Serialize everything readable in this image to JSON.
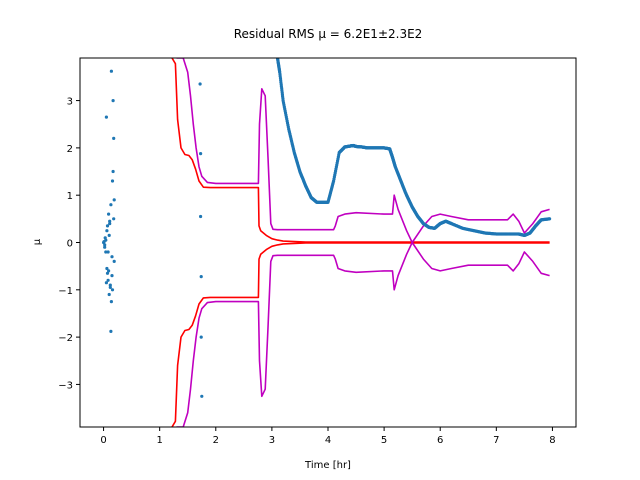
{
  "chart_data": {
    "type": "line",
    "title": "Residual RMS μ = 6.2E1±2.3E2",
    "xlabel": "Time [hr]",
    "ylabel": "μ",
    "xlim": [
      -0.42,
      8.42
    ],
    "ylim": [
      -3.9,
      3.9
    ],
    "xticks": [
      "0",
      "1",
      "2",
      "3",
      "4",
      "5",
      "6",
      "7",
      "8"
    ],
    "yticks": [
      "−3",
      "−2",
      "−1",
      "0",
      "1",
      "2",
      "3"
    ],
    "grid": false,
    "series": [
      {
        "color": "#ff0000",
        "style": "line",
        "x": [
          1.22,
          1.28,
          1.32,
          1.38,
          1.45,
          1.52,
          1.58,
          1.64,
          1.7,
          1.78,
          1.9,
          2.1,
          2.4,
          2.76,
          2.77,
          2.8,
          2.9,
          3.0,
          3.1,
          3.2,
          3.4,
          3.6,
          3.8,
          4.0,
          4.5,
          5.0,
          5.5,
          6.0,
          6.5,
          7.0,
          7.5,
          7.95
        ],
        "values": [
          3.9,
          3.78,
          2.6,
          2.0,
          1.86,
          1.84,
          1.75,
          1.55,
          1.3,
          1.17,
          1.16,
          1.16,
          1.16,
          1.16,
          0.35,
          0.25,
          0.15,
          0.08,
          0.05,
          0.03,
          0.02,
          0.01,
          0.01,
          0.01,
          0.01,
          0.01,
          0.01,
          0.01,
          0.01,
          0.01,
          0.01,
          0.01
        ]
      },
      {
        "color": "#ff0000",
        "style": "line",
        "x": [
          1.22,
          1.28,
          1.32,
          1.38,
          1.45,
          1.52,
          1.58,
          1.64,
          1.7,
          1.78,
          1.9,
          2.1,
          2.4,
          2.76,
          2.77,
          2.8,
          2.9,
          3.0,
          3.1,
          3.2,
          3.4,
          3.6,
          3.8,
          4.0,
          4.5,
          5.0,
          5.5,
          6.0,
          6.5,
          7.0,
          7.5,
          7.95
        ],
        "values": [
          -3.9,
          -3.78,
          -2.6,
          -2.0,
          -1.86,
          -1.84,
          -1.75,
          -1.55,
          -1.3,
          -1.17,
          -1.16,
          -1.16,
          -1.16,
          -1.16,
          -0.35,
          -0.25,
          -0.15,
          -0.08,
          -0.05,
          -0.03,
          -0.02,
          -0.01,
          -0.01,
          -0.01,
          -0.01,
          -0.01,
          -0.01,
          -0.01,
          -0.01,
          -0.01,
          -0.01,
          -0.01
        ]
      },
      {
        "color": "#c000c0",
        "style": "line",
        "x": [
          1.3,
          1.35,
          1.42,
          1.5,
          1.55,
          1.6,
          1.65,
          1.7,
          1.75,
          1.85,
          2.0,
          2.5,
          2.76,
          2.78,
          2.82,
          2.88,
          2.93,
          2.98,
          3.02,
          3.1,
          3.4,
          3.8,
          4.1,
          4.13,
          4.18,
          4.3,
          4.5,
          5.0,
          5.15,
          5.18,
          5.25,
          5.4,
          5.5,
          5.7,
          5.85,
          6.0,
          6.2,
          6.5,
          6.9,
          7.2,
          7.3,
          7.4,
          7.5,
          7.65,
          7.8,
          7.95
        ],
        "values": [
          3.9,
          3.9,
          3.9,
          3.6,
          3.1,
          2.5,
          2.0,
          1.6,
          1.4,
          1.27,
          1.25,
          1.25,
          1.25,
          2.5,
          3.25,
          3.1,
          1.8,
          0.4,
          0.28,
          0.27,
          0.27,
          0.27,
          0.27,
          0.35,
          0.55,
          0.6,
          0.63,
          0.6,
          0.6,
          1.0,
          0.7,
          0.25,
          0.0,
          0.35,
          0.55,
          0.6,
          0.55,
          0.48,
          0.48,
          0.48,
          0.6,
          0.45,
          0.2,
          0.4,
          0.65,
          0.7
        ]
      },
      {
        "color": "#c000c0",
        "style": "line",
        "x": [
          1.3,
          1.35,
          1.42,
          1.5,
          1.55,
          1.6,
          1.65,
          1.7,
          1.75,
          1.85,
          2.0,
          2.5,
          2.76,
          2.78,
          2.82,
          2.88,
          2.93,
          2.98,
          3.02,
          3.1,
          3.4,
          3.8,
          4.1,
          4.13,
          4.18,
          4.3,
          4.5,
          5.0,
          5.15,
          5.18,
          5.25,
          5.4,
          5.5,
          5.7,
          5.85,
          6.0,
          6.2,
          6.5,
          6.9,
          7.2,
          7.3,
          7.4,
          7.5,
          7.65,
          7.8,
          7.95
        ],
        "values": [
          -3.9,
          -3.9,
          -3.9,
          -3.6,
          -3.1,
          -2.5,
          -2.0,
          -1.6,
          -1.4,
          -1.27,
          -1.25,
          -1.25,
          -1.25,
          -2.5,
          -3.25,
          -3.1,
          -1.8,
          -0.4,
          -0.28,
          -0.27,
          -0.27,
          -0.27,
          -0.27,
          -0.35,
          -0.55,
          -0.6,
          -0.63,
          -0.6,
          -0.6,
          -1.0,
          -0.7,
          -0.25,
          0.0,
          -0.35,
          -0.55,
          -0.6,
          -0.55,
          -0.48,
          -0.48,
          -0.48,
          -0.6,
          -0.45,
          -0.2,
          -0.4,
          -0.65,
          -0.7
        ]
      },
      {
        "color": "#1f77b4",
        "style": "dense-dots",
        "x": [
          3.1,
          3.14,
          3.2,
          3.3,
          3.4,
          3.5,
          3.6,
          3.7,
          3.8,
          3.9,
          4.0,
          4.1,
          4.2,
          4.3,
          4.4,
          4.45,
          4.5,
          4.6,
          4.7,
          4.8,
          4.9,
          5.0,
          5.1,
          5.15,
          5.2,
          5.3,
          5.4,
          5.5,
          5.6,
          5.7,
          5.8,
          5.9,
          6.0,
          6.1,
          6.2,
          6.4,
          6.6,
          6.8,
          7.0,
          7.2,
          7.4,
          7.5,
          7.6,
          7.7,
          7.8,
          7.95
        ],
        "values": [
          3.9,
          3.6,
          3.0,
          2.4,
          1.9,
          1.5,
          1.2,
          0.95,
          0.85,
          0.85,
          0.85,
          1.3,
          1.9,
          2.02,
          2.04,
          2.05,
          2.03,
          2.02,
          2.0,
          2.0,
          2.0,
          2.0,
          1.98,
          1.8,
          1.6,
          1.3,
          1.0,
          0.75,
          0.55,
          0.4,
          0.32,
          0.3,
          0.4,
          0.45,
          0.4,
          0.3,
          0.25,
          0.2,
          0.18,
          0.18,
          0.18,
          0.15,
          0.2,
          0.35,
          0.48,
          0.5
        ]
      },
      {
        "color": "#1f77b4",
        "style": "scatter",
        "x": [
          0.0,
          0.01,
          0.02,
          0.03,
          0.04,
          0.05,
          0.06,
          0.07,
          0.08,
          0.09,
          0.1,
          0.11,
          0.12,
          0.13,
          0.14,
          0.15,
          0.16,
          0.17,
          0.18,
          0.19,
          0.02,
          0.06,
          0.09,
          0.11,
          0.13,
          0.15,
          0.17,
          0.19,
          0.04,
          0.08,
          0.12,
          0.16,
          0.18,
          0.05,
          0.1,
          0.14,
          0.07,
          1.72,
          1.73,
          1.73,
          1.74,
          1.74,
          1.75
        ],
        "values": [
          0.0,
          0.02,
          -0.05,
          0.1,
          -0.2,
          2.65,
          -0.55,
          0.35,
          -0.8,
          0.6,
          -1.1,
          0.45,
          -0.95,
          -1.88,
          3.62,
          -0.7,
          1.3,
          3.0,
          2.2,
          0.9,
          -0.1,
          0.25,
          -0.6,
          0.4,
          0.8,
          -0.3,
          1.5,
          -0.4,
          0.05,
          -0.2,
          -0.9,
          -1.0,
          0.5,
          -0.85,
          0.15,
          -1.25,
          -0.65,
          3.35,
          1.88,
          0.55,
          -0.72,
          -2.0,
          -3.25
        ]
      }
    ]
  }
}
